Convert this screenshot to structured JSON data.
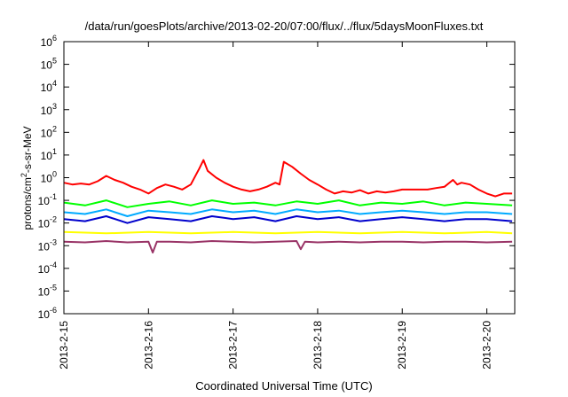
{
  "chart_data": {
    "type": "line",
    "title": "/data/run/goesPlots/archive/2013-02-20/07:00/flux/../flux/5daysMoonFluxes.txt",
    "xlabel": "Coordinated Universal Time (UTC)",
    "ylabel": "protons/cm2-s-sr-MeV",
    "ylabel_parts": {
      "pre": "protons/cm",
      "sup": "2",
      "post": "-s-sr-MeV"
    },
    "yscale": "log",
    "ylim_exponent": [
      -6,
      6
    ],
    "y_tick_labels": [
      {
        "base": "10",
        "exp": "6"
      },
      {
        "base": "10",
        "exp": "5"
      },
      {
        "base": "10",
        "exp": "4"
      },
      {
        "base": "10",
        "exp": "3"
      },
      {
        "base": "10",
        "exp": "2"
      },
      {
        "base": "10",
        "exp": "1"
      },
      {
        "base": "10",
        "exp": "0"
      },
      {
        "base": "10",
        "exp": "-1"
      },
      {
        "base": "10",
        "exp": "-2"
      },
      {
        "base": "10",
        "exp": "-3"
      },
      {
        "base": "10",
        "exp": "-4"
      },
      {
        "base": "10",
        "exp": "-5"
      },
      {
        "base": "10",
        "exp": "-6"
      }
    ],
    "xlim_days": [
      0,
      5.33
    ],
    "x_tick_labels": [
      "2013-2-15",
      "2013-2-16",
      "2013-2-17",
      "2013-2-18",
      "2013-2-19",
      "2013-2-20"
    ],
    "grid": false,
    "legend": "none",
    "series": [
      {
        "color": "#ff0000",
        "values": [
          [
            0.0,
            0.6
          ],
          [
            0.1,
            0.5
          ],
          [
            0.2,
            0.55
          ],
          [
            0.3,
            0.5
          ],
          [
            0.4,
            0.7
          ],
          [
            0.5,
            1.2
          ],
          [
            0.6,
            0.8
          ],
          [
            0.7,
            0.6
          ],
          [
            0.8,
            0.4
          ],
          [
            0.9,
            0.3
          ],
          [
            1.0,
            0.2
          ],
          [
            1.1,
            0.35
          ],
          [
            1.2,
            0.5
          ],
          [
            1.3,
            0.4
          ],
          [
            1.4,
            0.3
          ],
          [
            1.5,
            0.5
          ],
          [
            1.6,
            2.5
          ],
          [
            1.65,
            6.0
          ],
          [
            1.7,
            2.0
          ],
          [
            1.8,
            1.0
          ],
          [
            1.9,
            0.6
          ],
          [
            2.0,
            0.4
          ],
          [
            2.1,
            0.3
          ],
          [
            2.2,
            0.25
          ],
          [
            2.3,
            0.3
          ],
          [
            2.4,
            0.4
          ],
          [
            2.5,
            0.6
          ],
          [
            2.55,
            0.5
          ],
          [
            2.6,
            5.0
          ],
          [
            2.7,
            3.0
          ],
          [
            2.8,
            1.5
          ],
          [
            2.9,
            0.8
          ],
          [
            3.0,
            0.5
          ],
          [
            3.1,
            0.3
          ],
          [
            3.2,
            0.2
          ],
          [
            3.3,
            0.25
          ],
          [
            3.4,
            0.22
          ],
          [
            3.5,
            0.28
          ],
          [
            3.6,
            0.2
          ],
          [
            3.7,
            0.25
          ],
          [
            3.8,
            0.22
          ],
          [
            3.9,
            0.25
          ],
          [
            4.0,
            0.3
          ],
          [
            4.1,
            0.3
          ],
          [
            4.2,
            0.3
          ],
          [
            4.3,
            0.3
          ],
          [
            4.4,
            0.35
          ],
          [
            4.5,
            0.4
          ],
          [
            4.6,
            0.8
          ],
          [
            4.65,
            0.5
          ],
          [
            4.7,
            0.6
          ],
          [
            4.8,
            0.5
          ],
          [
            4.9,
            0.3
          ],
          [
            5.0,
            0.2
          ],
          [
            5.1,
            0.15
          ],
          [
            5.2,
            0.2
          ],
          [
            5.3,
            0.2
          ]
        ]
      },
      {
        "color": "#00ff00",
        "values": [
          [
            0.0,
            0.08
          ],
          [
            0.25,
            0.06
          ],
          [
            0.5,
            0.1
          ],
          [
            0.75,
            0.05
          ],
          [
            1.0,
            0.07
          ],
          [
            1.25,
            0.09
          ],
          [
            1.5,
            0.06
          ],
          [
            1.75,
            0.1
          ],
          [
            2.0,
            0.07
          ],
          [
            2.25,
            0.08
          ],
          [
            2.5,
            0.06
          ],
          [
            2.75,
            0.09
          ],
          [
            3.0,
            0.07
          ],
          [
            3.25,
            0.1
          ],
          [
            3.5,
            0.06
          ],
          [
            3.75,
            0.08
          ],
          [
            4.0,
            0.07
          ],
          [
            4.25,
            0.09
          ],
          [
            4.5,
            0.06
          ],
          [
            4.75,
            0.08
          ],
          [
            5.0,
            0.07
          ],
          [
            5.3,
            0.06
          ]
        ]
      },
      {
        "color": "#00aaff",
        "values": [
          [
            0.0,
            0.03
          ],
          [
            0.25,
            0.025
          ],
          [
            0.5,
            0.04
          ],
          [
            0.75,
            0.02
          ],
          [
            1.0,
            0.035
          ],
          [
            1.25,
            0.03
          ],
          [
            1.5,
            0.025
          ],
          [
            1.75,
            0.04
          ],
          [
            2.0,
            0.03
          ],
          [
            2.25,
            0.035
          ],
          [
            2.5,
            0.025
          ],
          [
            2.75,
            0.04
          ],
          [
            3.0,
            0.03
          ],
          [
            3.25,
            0.035
          ],
          [
            3.5,
            0.025
          ],
          [
            3.75,
            0.03
          ],
          [
            4.0,
            0.035
          ],
          [
            4.25,
            0.03
          ],
          [
            4.5,
            0.025
          ],
          [
            4.75,
            0.03
          ],
          [
            5.0,
            0.03
          ],
          [
            5.3,
            0.025
          ]
        ]
      },
      {
        "color": "#0000cc",
        "values": [
          [
            0.0,
            0.015
          ],
          [
            0.25,
            0.012
          ],
          [
            0.5,
            0.02
          ],
          [
            0.75,
            0.01
          ],
          [
            1.0,
            0.018
          ],
          [
            1.25,
            0.015
          ],
          [
            1.5,
            0.012
          ],
          [
            1.75,
            0.02
          ],
          [
            2.0,
            0.015
          ],
          [
            2.25,
            0.018
          ],
          [
            2.5,
            0.012
          ],
          [
            2.75,
            0.02
          ],
          [
            3.0,
            0.015
          ],
          [
            3.25,
            0.018
          ],
          [
            3.5,
            0.012
          ],
          [
            3.75,
            0.015
          ],
          [
            4.0,
            0.018
          ],
          [
            4.25,
            0.015
          ],
          [
            4.5,
            0.012
          ],
          [
            4.75,
            0.015
          ],
          [
            5.0,
            0.015
          ],
          [
            5.3,
            0.012
          ]
        ]
      },
      {
        "color": "#ffff00",
        "values": [
          [
            0.0,
            0.004
          ],
          [
            0.5,
            0.0035
          ],
          [
            1.0,
            0.004
          ],
          [
            1.5,
            0.0035
          ],
          [
            2.0,
            0.004
          ],
          [
            2.5,
            0.0035
          ],
          [
            3.0,
            0.004
          ],
          [
            3.5,
            0.0035
          ],
          [
            4.0,
            0.004
          ],
          [
            4.5,
            0.0035
          ],
          [
            5.0,
            0.004
          ],
          [
            5.3,
            0.0035
          ]
        ]
      },
      {
        "color": "#993366",
        "values": [
          [
            0.0,
            0.0015
          ],
          [
            0.25,
            0.0014
          ],
          [
            0.5,
            0.0016
          ],
          [
            0.75,
            0.0014
          ],
          [
            1.0,
            0.0015
          ],
          [
            1.05,
            0.0005
          ],
          [
            1.1,
            0.0015
          ],
          [
            1.25,
            0.0015
          ],
          [
            1.5,
            0.0014
          ],
          [
            1.75,
            0.0016
          ],
          [
            2.0,
            0.0015
          ],
          [
            2.25,
            0.0014
          ],
          [
            2.5,
            0.0015
          ],
          [
            2.75,
            0.0016
          ],
          [
            2.8,
            0.0007
          ],
          [
            2.85,
            0.0015
          ],
          [
            3.0,
            0.0014
          ],
          [
            3.25,
            0.0015
          ],
          [
            3.5,
            0.0014
          ],
          [
            3.75,
            0.0015
          ],
          [
            4.0,
            0.0015
          ],
          [
            4.25,
            0.0014
          ],
          [
            4.5,
            0.0015
          ],
          [
            4.75,
            0.0015
          ],
          [
            5.0,
            0.0014
          ],
          [
            5.3,
            0.0015
          ]
        ]
      }
    ]
  }
}
